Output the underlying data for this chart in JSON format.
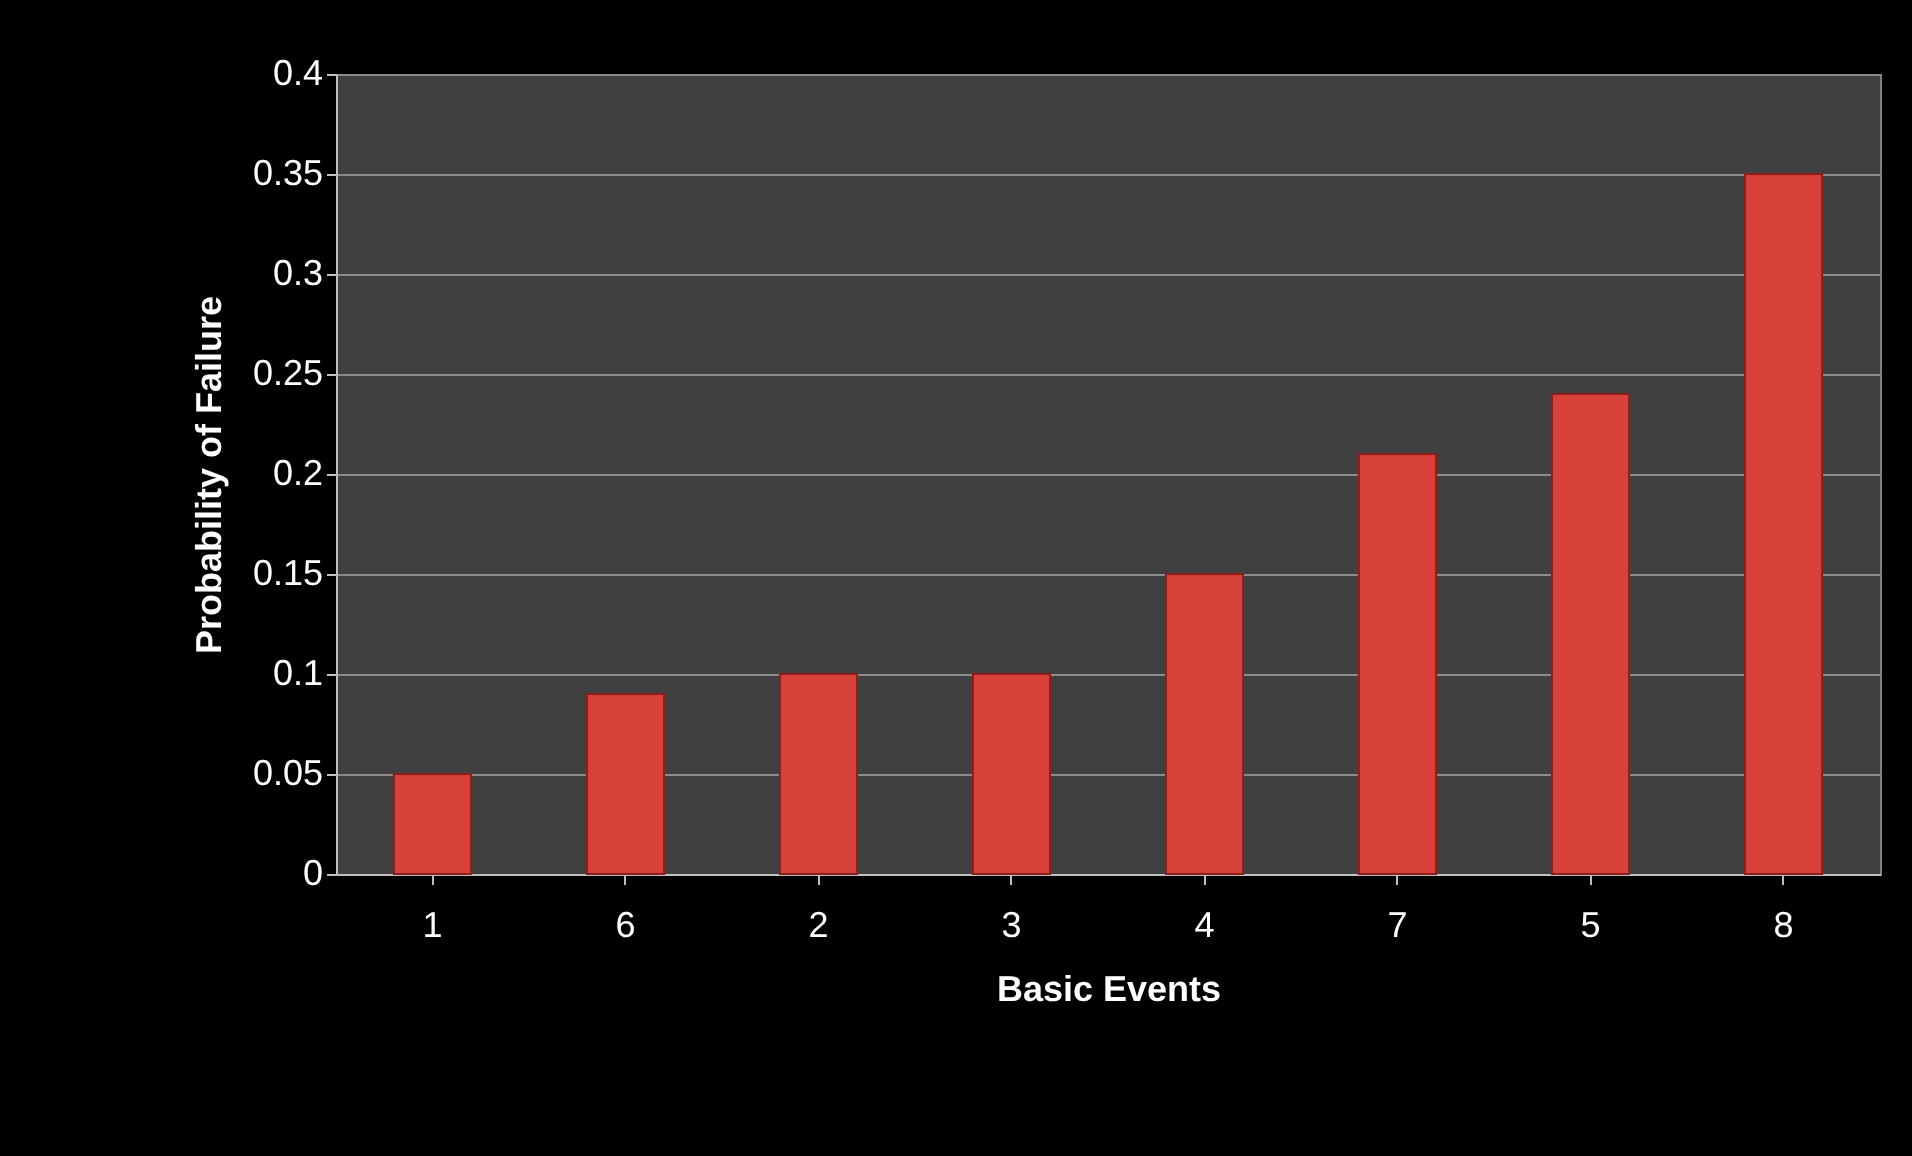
{
  "chart_data": {
    "type": "bar",
    "xlabel": "Basic Events",
    "ylabel": "Probability of Failure",
    "categories": [
      "1",
      "6",
      "2",
      "3",
      "4",
      "7",
      "5",
      "8"
    ],
    "values": [
      0.05,
      0.09,
      0.1,
      0.1,
      0.15,
      0.21,
      0.24,
      0.35
    ],
    "color": "#d8403a",
    "ylim": [
      0,
      0.4
    ],
    "yticks": [
      0,
      0.05,
      0.1,
      0.15,
      0.2,
      0.25,
      0.3,
      0.35,
      0.4
    ],
    "grid": "y"
  }
}
